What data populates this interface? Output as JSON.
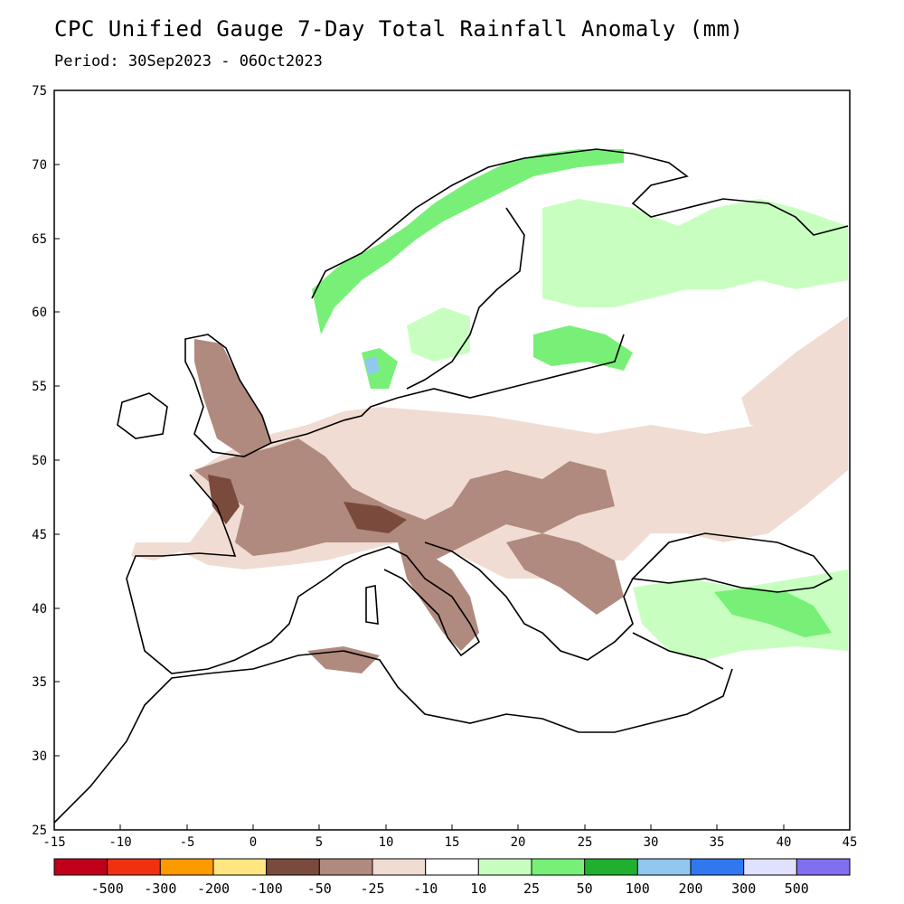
{
  "title": "CPC Unified Gauge 7-Day Total Rainfall Anomaly (mm)",
  "period": "Period: 30Sep2023 - 06Oct2023",
  "lat_ticks": [
    "75",
    "70",
    "65",
    "60",
    "55",
    "50",
    "45",
    "40",
    "35",
    "30",
    "25"
  ],
  "lon_ticks": [
    "-15",
    "-10",
    "-5",
    "0",
    "5",
    "10",
    "15",
    "20",
    "25",
    "30",
    "35",
    "40",
    "45"
  ],
  "colorbar": {
    "colors": [
      "#c0001a",
      "#f03010",
      "#ff9900",
      "#ffe680",
      "#7a4a3c",
      "#b08a7e",
      "#f0dcd2",
      "#ffffff",
      "#c8ffc0",
      "#78f078",
      "#20b030",
      "#90c8f0",
      "#3078f0",
      "#e0e0ff",
      "#8070f0"
    ],
    "labels": [
      "-500",
      "-300",
      "-200",
      "-100",
      "-50",
      "-25",
      "-10",
      "10",
      "25",
      "50",
      "100",
      "200",
      "300",
      "500"
    ]
  },
  "map_colors": {
    "land": "#ffffff",
    "dry_light": "#f0dcd2",
    "dry_medium": "#b08a7e",
    "dry_strong": "#7a4a3c",
    "wet_light": "#c8ffc0",
    "wet_medium": "#78f078",
    "wet_strong": "#20b030",
    "wet_blue": "#90c8f0"
  }
}
